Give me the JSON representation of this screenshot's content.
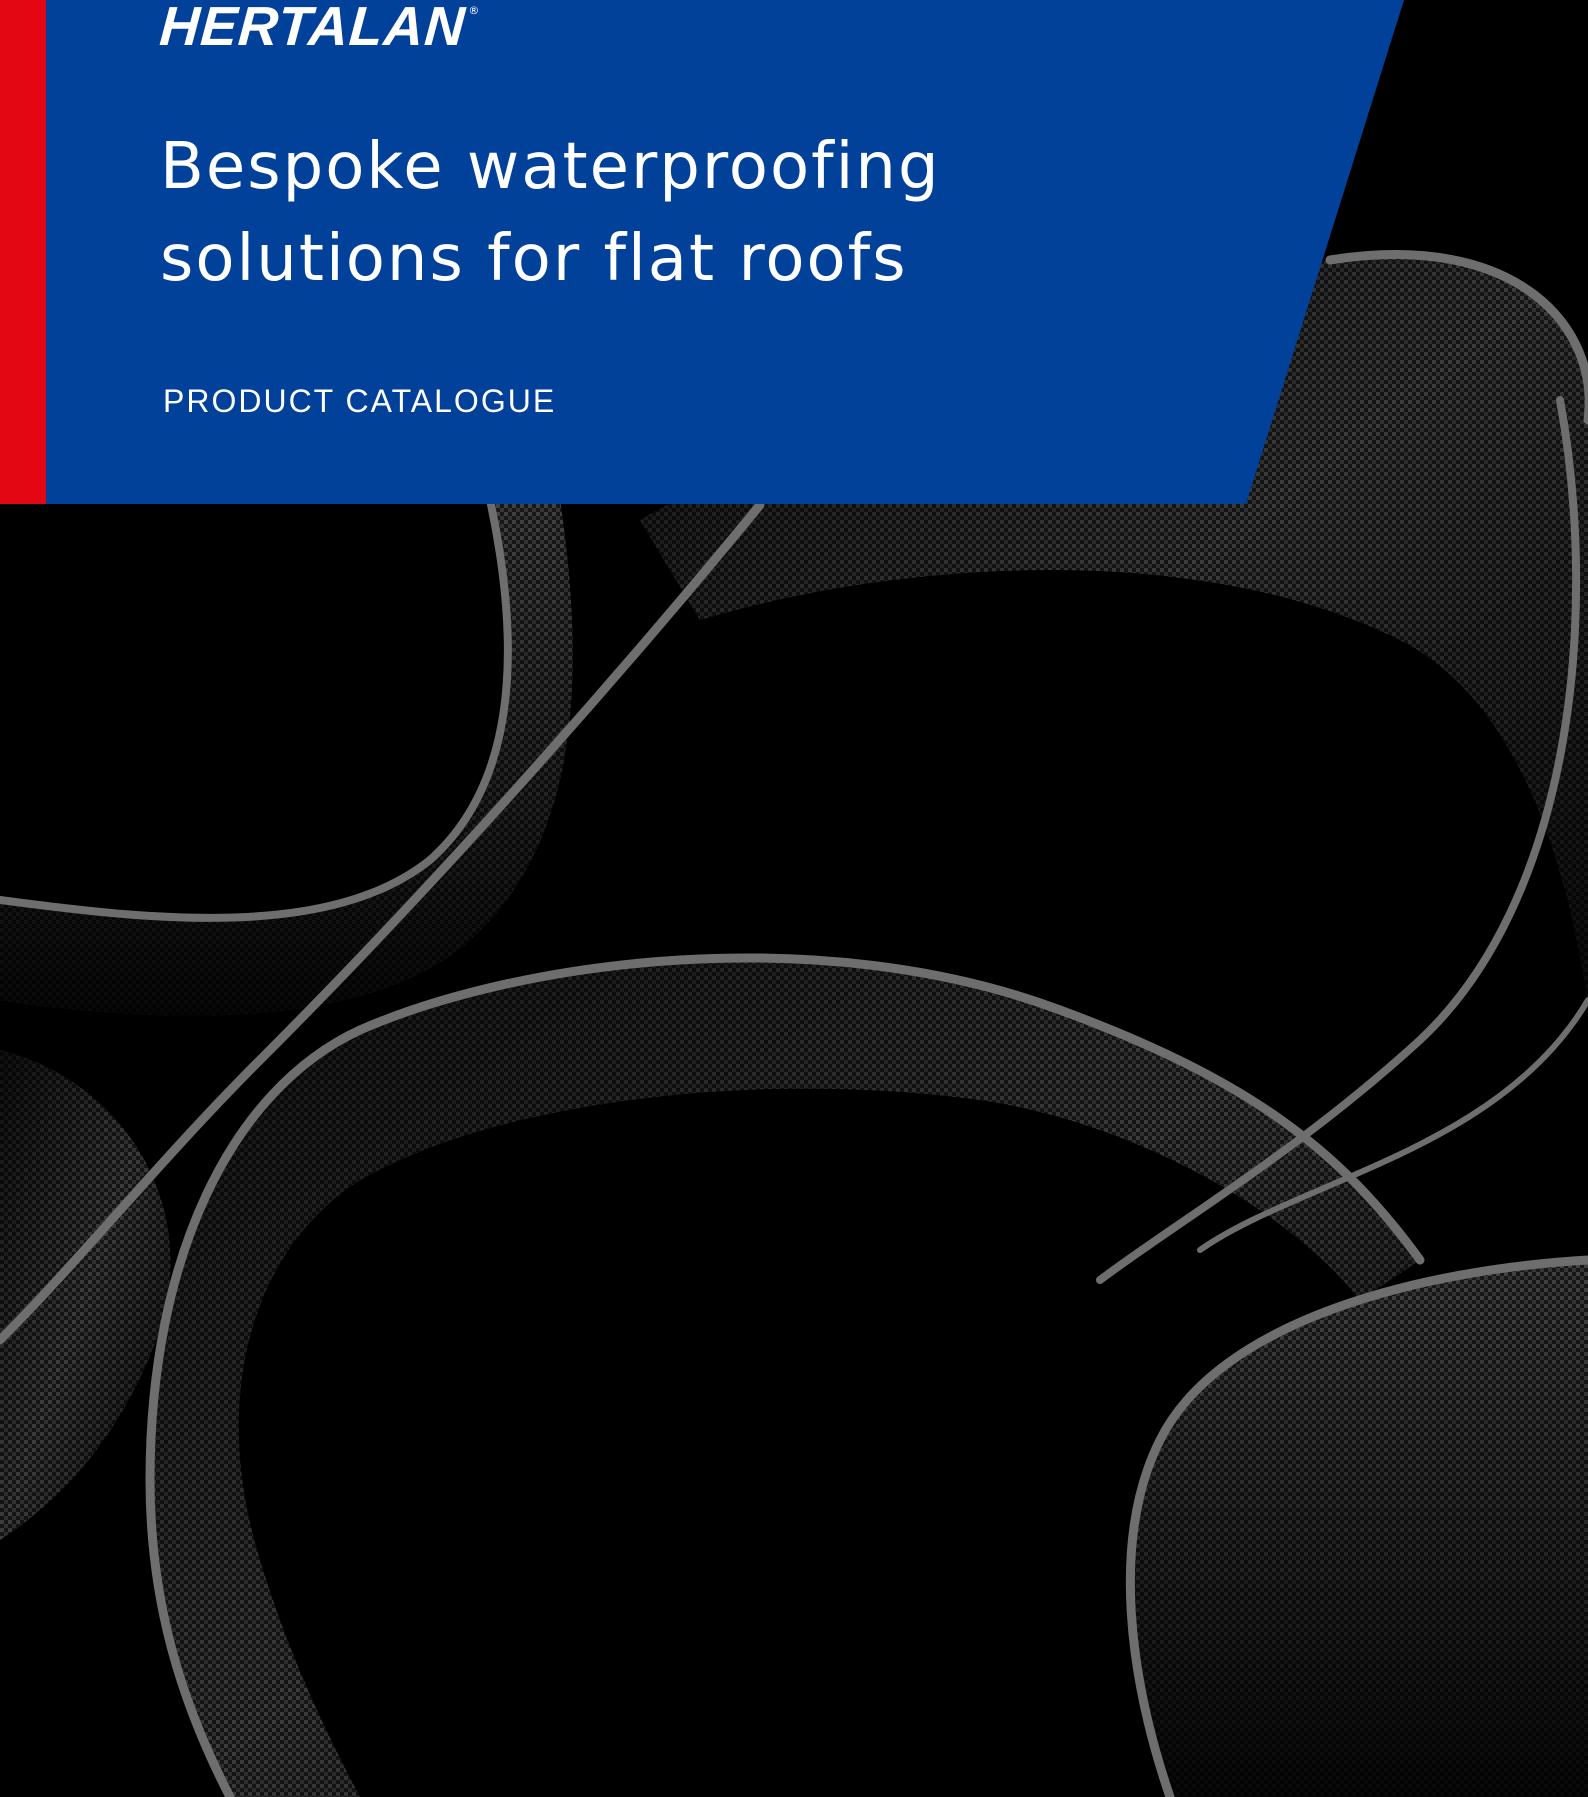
{
  "cover": {
    "brand": "HERTALAN",
    "registered_mark": "®",
    "title_line_1": "Bespoke waterproofing",
    "title_line_2": "solutions for flat roofs",
    "subtitle": "PRODUCT CATALOGUE"
  },
  "colors": {
    "accent_red": "#e30613",
    "brand_blue": "#02419a",
    "background": "#000000"
  }
}
